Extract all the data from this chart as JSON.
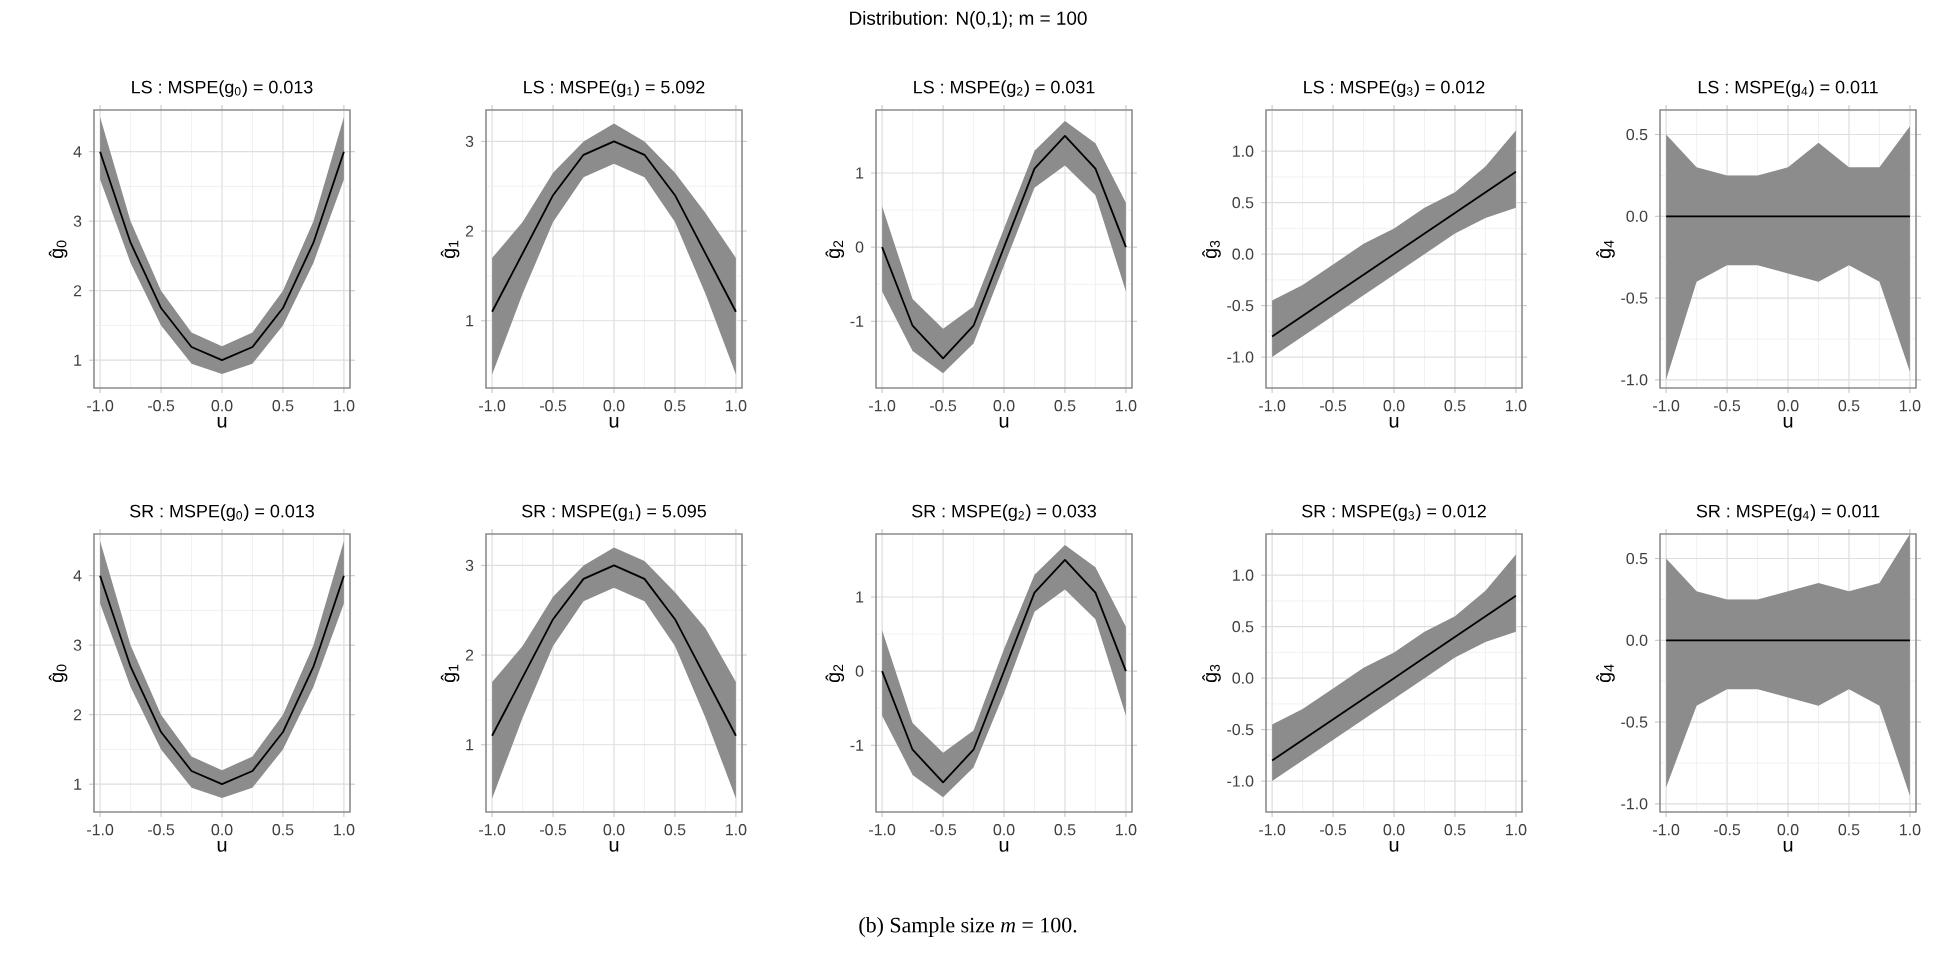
{
  "chart_data": [
    {
      "type": "line",
      "title": "LS : MSPE(g$_{0}$) = 0.013",
      "xlabel": "u",
      "ylabel": "ĝ$_{0}$",
      "grid": true,
      "annotations": [
        "Distribution: N(0,1); m = 100",
        "(b) Sample size *m* = 100."
      ],
      "x": [
        -1,
        -0.75,
        -0.5,
        -0.25,
        0,
        0.25,
        0.5,
        0.75,
        1
      ],
      "xlim": [
        -1.05,
        1.05
      ],
      "xticks": [
        {
          "value": -1,
          "label": "-1.0"
        },
        {
          "value": -0.5,
          "label": "-0.5"
        },
        {
          "value": 0,
          "label": "0.0"
        },
        {
          "value": 0.5,
          "label": "0.5"
        },
        {
          "value": 1,
          "label": "1.0"
        }
      ],
      "ylim": [
        0.6,
        4.6
      ],
      "yticks": [
        1,
        2,
        3,
        4
      ],
      "series": [
        {
          "color": "#000000",
          "values": [
            4,
            2.69,
            1.75,
            1.19,
            1,
            1.19,
            1.75,
            2.69,
            4
          ],
          "lower": [
            3.6,
            2.4,
            1.5,
            0.95,
            0.8,
            0.95,
            1.5,
            2.4,
            3.6
          ],
          "upper": [
            4.5,
            3.0,
            2.0,
            1.4,
            1.2,
            1.4,
            2.0,
            3.0,
            4.5
          ]
        }
      ]
    },
    {
      "type": "line",
      "title": "LS : MSPE(g$_{1}$) = 5.092",
      "xlabel": "u",
      "ylabel": "ĝ$_{1}$",
      "grid": true,
      "x": [
        -1,
        -0.75,
        -0.5,
        -0.25,
        0,
        0.25,
        0.5,
        0.75,
        1
      ],
      "xlim": [
        -1.05,
        1.05
      ],
      "xticks": [
        {
          "value": -1,
          "label": "-1.0"
        },
        {
          "value": -0.5,
          "label": "-0.5"
        },
        {
          "value": 0,
          "label": "0.0"
        },
        {
          "value": 0.5,
          "label": "0.5"
        },
        {
          "value": 1,
          "label": "1.0"
        }
      ],
      "ylim": [
        0.25,
        3.35
      ],
      "yticks": [
        1,
        2,
        3
      ],
      "series": [
        {
          "color": "#000000",
          "values": [
            1.1,
            1.75,
            2.4,
            2.85,
            3.0,
            2.85,
            2.4,
            1.75,
            1.1
          ],
          "lower": [
            0.4,
            1.3,
            2.1,
            2.6,
            2.75,
            2.6,
            2.1,
            1.3,
            0.4
          ],
          "upper": [
            1.7,
            2.1,
            2.65,
            3.0,
            3.2,
            3.0,
            2.65,
            2.2,
            1.7
          ]
        }
      ]
    },
    {
      "type": "line",
      "title": "LS : MSPE(g$_{2}$) = 0.031",
      "xlabel": "u",
      "ylabel": "ĝ$_{2}$",
      "grid": true,
      "x": [
        -1,
        -0.75,
        -0.5,
        -0.25,
        0,
        0.25,
        0.5,
        0.75,
        1
      ],
      "xlim": [
        -1.05,
        1.05
      ],
      "xticks": [
        {
          "value": -1,
          "label": "-1.0"
        },
        {
          "value": -0.5,
          "label": "-0.5"
        },
        {
          "value": 0,
          "label": "0.0"
        },
        {
          "value": 0.5,
          "label": "0.5"
        },
        {
          "value": 1,
          "label": "1.0"
        }
      ],
      "ylim": [
        -1.9,
        1.85
      ],
      "yticks": [
        -1,
        0,
        1
      ],
      "series": [
        {
          "color": "#000000",
          "values": [
            0,
            -1.06,
            -1.5,
            -1.06,
            0,
            1.06,
            1.5,
            1.06,
            0
          ],
          "lower": [
            -0.6,
            -1.4,
            -1.7,
            -1.3,
            -0.25,
            0.8,
            1.1,
            0.7,
            -0.6
          ],
          "upper": [
            0.55,
            -0.7,
            -1.1,
            -0.8,
            0.25,
            1.3,
            1.7,
            1.4,
            0.6
          ]
        }
      ]
    },
    {
      "type": "line",
      "title": "LS : MSPE(g$_{3}$) = 0.012",
      "xlabel": "u",
      "ylabel": "ĝ$_{3}$",
      "grid": true,
      "x": [
        -1,
        -0.75,
        -0.5,
        -0.25,
        0,
        0.25,
        0.5,
        0.75,
        1
      ],
      "xlim": [
        -1.05,
        1.05
      ],
      "xticks": [
        {
          "value": -1,
          "label": "-1.0"
        },
        {
          "value": -0.5,
          "label": "-0.5"
        },
        {
          "value": 0,
          "label": "0.0"
        },
        {
          "value": 0.5,
          "label": "0.5"
        },
        {
          "value": 1,
          "label": "1.0"
        }
      ],
      "ylim": [
        -1.3,
        1.4
      ],
      "yticks": [
        {
          "value": -1,
          "label": "-1.0"
        },
        {
          "value": -0.5,
          "label": "-0.5"
        },
        {
          "value": 0,
          "label": "0.0"
        },
        {
          "value": 0.5,
          "label": "0.5"
        },
        {
          "value": 1,
          "label": "1.0"
        }
      ],
      "series": [
        {
          "color": "#000000",
          "values": [
            -0.8,
            -0.6,
            -0.4,
            -0.2,
            0,
            0.2,
            0.4,
            0.6,
            0.8
          ],
          "lower": [
            -1.0,
            -0.8,
            -0.6,
            -0.4,
            -0.2,
            0.0,
            0.2,
            0.35,
            0.45
          ],
          "upper": [
            -0.45,
            -0.3,
            -0.1,
            0.1,
            0.25,
            0.45,
            0.6,
            0.85,
            1.2
          ]
        }
      ]
    },
    {
      "type": "line",
      "title": "LS : MSPE(g$_{4}$) = 0.011",
      "xlabel": "u",
      "ylabel": "ĝ$_{4}$",
      "grid": true,
      "x": [
        -1,
        -0.75,
        -0.5,
        -0.25,
        0,
        0.25,
        0.5,
        0.75,
        1
      ],
      "xlim": [
        -1.05,
        1.05
      ],
      "xticks": [
        {
          "value": -1,
          "label": "-1.0"
        },
        {
          "value": -0.5,
          "label": "-0.5"
        },
        {
          "value": 0,
          "label": "0.0"
        },
        {
          "value": 0.5,
          "label": "0.5"
        },
        {
          "value": 1,
          "label": "1.0"
        }
      ],
      "ylim": [
        -1.05,
        0.65
      ],
      "yticks": [
        {
          "value": -1,
          "label": "-1.0"
        },
        {
          "value": -0.5,
          "label": "-0.5"
        },
        {
          "value": 0,
          "label": "0.0"
        },
        {
          "value": 0.5,
          "label": "0.5"
        }
      ],
      "series": [
        {
          "color": "#000000",
          "values": [
            0,
            0,
            0,
            0,
            0,
            0,
            0,
            0,
            0
          ],
          "lower": [
            -1.0,
            -0.4,
            -0.3,
            -0.3,
            -0.35,
            -0.4,
            -0.3,
            -0.4,
            -0.95
          ],
          "upper": [
            0.5,
            0.3,
            0.25,
            0.25,
            0.3,
            0.45,
            0.3,
            0.3,
            0.55
          ]
        }
      ]
    },
    {
      "type": "line",
      "title": "SR : MSPE(g$_{0}$) = 0.013",
      "xlabel": "u",
      "ylabel": "ĝ$_{0}$",
      "grid": true,
      "x": [
        -1,
        -0.75,
        -0.5,
        -0.25,
        0,
        0.25,
        0.5,
        0.75,
        1
      ],
      "xlim": [
        -1.05,
        1.05
      ],
      "xticks": [
        {
          "value": -1,
          "label": "-1.0"
        },
        {
          "value": -0.5,
          "label": "-0.5"
        },
        {
          "value": 0,
          "label": "0.0"
        },
        {
          "value": 0.5,
          "label": "0.5"
        },
        {
          "value": 1,
          "label": "1.0"
        }
      ],
      "ylim": [
        0.6,
        4.6
      ],
      "yticks": [
        1,
        2,
        3,
        4
      ],
      "series": [
        {
          "color": "#000000",
          "values": [
            4,
            2.69,
            1.75,
            1.19,
            1,
            1.19,
            1.75,
            2.69,
            4
          ],
          "lower": [
            3.6,
            2.4,
            1.5,
            0.95,
            0.8,
            0.95,
            1.5,
            2.4,
            3.6
          ],
          "upper": [
            4.5,
            3.0,
            2.0,
            1.4,
            1.2,
            1.4,
            2.0,
            3.0,
            4.5
          ]
        }
      ]
    },
    {
      "type": "line",
      "title": "SR : MSPE(g$_{1}$) = 5.095",
      "xlabel": "u",
      "ylabel": "ĝ$_{1}$",
      "grid": true,
      "x": [
        -1,
        -0.75,
        -0.5,
        -0.25,
        0,
        0.25,
        0.5,
        0.75,
        1
      ],
      "xlim": [
        -1.05,
        1.05
      ],
      "xticks": [
        {
          "value": -1,
          "label": "-1.0"
        },
        {
          "value": -0.5,
          "label": "-0.5"
        },
        {
          "value": 0,
          "label": "0.0"
        },
        {
          "value": 0.5,
          "label": "0.5"
        },
        {
          "value": 1,
          "label": "1.0"
        }
      ],
      "ylim": [
        0.25,
        3.35
      ],
      "yticks": [
        1,
        2,
        3
      ],
      "series": [
        {
          "color": "#000000",
          "values": [
            1.1,
            1.75,
            2.4,
            2.85,
            3.0,
            2.85,
            2.4,
            1.75,
            1.1
          ],
          "lower": [
            0.4,
            1.3,
            2.1,
            2.6,
            2.75,
            2.6,
            2.1,
            1.3,
            0.4
          ],
          "upper": [
            1.7,
            2.1,
            2.65,
            3.0,
            3.2,
            3.05,
            2.7,
            2.3,
            1.7
          ]
        }
      ]
    },
    {
      "type": "line",
      "title": "SR : MSPE(g$_{2}$) = 0.033",
      "xlabel": "u",
      "ylabel": "ĝ$_{2}$",
      "grid": true,
      "x": [
        -1,
        -0.75,
        -0.5,
        -0.25,
        0,
        0.25,
        0.5,
        0.75,
        1
      ],
      "xlim": [
        -1.05,
        1.05
      ],
      "xticks": [
        {
          "value": -1,
          "label": "-1.0"
        },
        {
          "value": -0.5,
          "label": "-0.5"
        },
        {
          "value": 0,
          "label": "0.0"
        },
        {
          "value": 0.5,
          "label": "0.5"
        },
        {
          "value": 1,
          "label": "1.0"
        }
      ],
      "ylim": [
        -1.9,
        1.85
      ],
      "yticks": [
        -1,
        0,
        1
      ],
      "series": [
        {
          "color": "#000000",
          "values": [
            0,
            -1.06,
            -1.5,
            -1.06,
            0,
            1.06,
            1.5,
            1.06,
            0
          ],
          "lower": [
            -0.6,
            -1.4,
            -1.7,
            -1.3,
            -0.3,
            0.8,
            1.1,
            0.7,
            -0.6
          ],
          "upper": [
            0.55,
            -0.7,
            -1.1,
            -0.8,
            0.3,
            1.3,
            1.7,
            1.4,
            0.6
          ]
        }
      ]
    },
    {
      "type": "line",
      "title": "SR : MSPE(g$_{3}$) = 0.012",
      "xlabel": "u",
      "ylabel": "ĝ$_{3}$",
      "grid": true,
      "x": [
        -1,
        -0.75,
        -0.5,
        -0.25,
        0,
        0.25,
        0.5,
        0.75,
        1
      ],
      "xlim": [
        -1.05,
        1.05
      ],
      "xticks": [
        {
          "value": -1,
          "label": "-1.0"
        },
        {
          "value": -0.5,
          "label": "-0.5"
        },
        {
          "value": 0,
          "label": "0.0"
        },
        {
          "value": 0.5,
          "label": "0.5"
        },
        {
          "value": 1,
          "label": "1.0"
        }
      ],
      "ylim": [
        -1.3,
        1.4
      ],
      "yticks": [
        {
          "value": -1,
          "label": "-1.0"
        },
        {
          "value": -0.5,
          "label": "-0.5"
        },
        {
          "value": 0,
          "label": "0.0"
        },
        {
          "value": 0.5,
          "label": "0.5"
        },
        {
          "value": 1,
          "label": "1.0"
        }
      ],
      "series": [
        {
          "color": "#000000",
          "values": [
            -0.8,
            -0.6,
            -0.4,
            -0.2,
            0,
            0.2,
            0.4,
            0.6,
            0.8
          ],
          "lower": [
            -1.0,
            -0.8,
            -0.6,
            -0.4,
            -0.2,
            0.0,
            0.2,
            0.35,
            0.45
          ],
          "upper": [
            -0.45,
            -0.3,
            -0.1,
            0.1,
            0.25,
            0.45,
            0.6,
            0.85,
            1.2
          ]
        }
      ]
    },
    {
      "type": "line",
      "title": "SR : MSPE(g$_{4}$) = 0.011",
      "xlabel": "u",
      "ylabel": "ĝ$_{4}$",
      "grid": true,
      "x": [
        -1,
        -0.75,
        -0.5,
        -0.25,
        0,
        0.25,
        0.5,
        0.75,
        1
      ],
      "xlim": [
        -1.05,
        1.05
      ],
      "xticks": [
        {
          "value": -1,
          "label": "-1.0"
        },
        {
          "value": -0.5,
          "label": "-0.5"
        },
        {
          "value": 0,
          "label": "0.0"
        },
        {
          "value": 0.5,
          "label": "0.5"
        },
        {
          "value": 1,
          "label": "1.0"
        }
      ],
      "ylim": [
        -1.05,
        0.65
      ],
      "yticks": [
        {
          "value": -1,
          "label": "-1.0"
        },
        {
          "value": -0.5,
          "label": "-0.5"
        },
        {
          "value": 0,
          "label": "0.0"
        },
        {
          "value": 0.5,
          "label": "0.5"
        }
      ],
      "series": [
        {
          "color": "#000000",
          "values": [
            0,
            0,
            0,
            0,
            0,
            0,
            0,
            0,
            0
          ],
          "lower": [
            -0.9,
            -0.4,
            -0.3,
            -0.3,
            -0.35,
            -0.4,
            -0.3,
            -0.4,
            -0.95
          ],
          "upper": [
            0.5,
            0.3,
            0.25,
            0.25,
            0.3,
            0.35,
            0.3,
            0.35,
            0.65
          ]
        }
      ]
    }
  ]
}
